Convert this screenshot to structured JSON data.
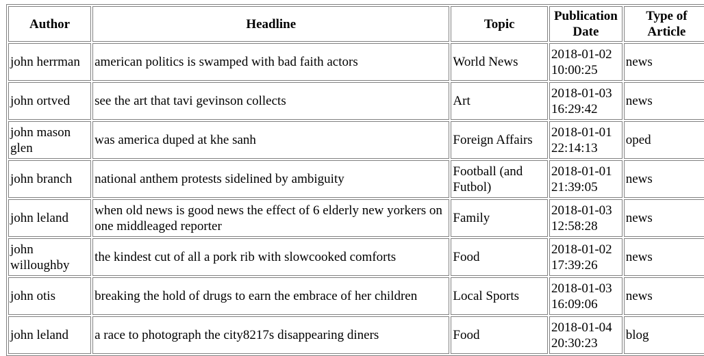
{
  "table": {
    "headers": [
      "Author",
      "Headline",
      "Topic",
      "Publication Date",
      "Type of Article"
    ],
    "rows": [
      [
        "john herrman",
        "american politics is swamped with bad faith actors",
        "World News",
        "2018-01-02 10:00:25",
        "news"
      ],
      [
        "john ortved",
        "see the art that tavi gevinson collects",
        "Art",
        "2018-01-03 16:29:42",
        "news"
      ],
      [
        "john mason glen",
        "was america duped at khe sanh",
        "Foreign Affairs",
        "2018-01-01 22:14:13",
        "oped"
      ],
      [
        "john branch",
        "national anthem protests sidelined by ambiguity",
        "Football (and Futbol)",
        "2018-01-01 21:39:05",
        "news"
      ],
      [
        "john leland",
        "when old news is good news the effect of 6 elderly new yorkers on one middleaged reporter",
        "Family",
        "2018-01-03 12:58:28",
        "news"
      ],
      [
        "john willoughby",
        "the kindest cut of all a pork rib with slowcooked comforts",
        "Food",
        "2018-01-02 17:39:26",
        "news"
      ],
      [
        "john otis",
        "breaking the hold of drugs to earn the embrace of her children",
        "Local Sports",
        "2018-01-03 16:09:06",
        "news"
      ],
      [
        "john leland",
        "a race to photograph the city8217s disappearing diners",
        "Food",
        "2018-01-04 20:30:23",
        "blog"
      ]
    ]
  }
}
